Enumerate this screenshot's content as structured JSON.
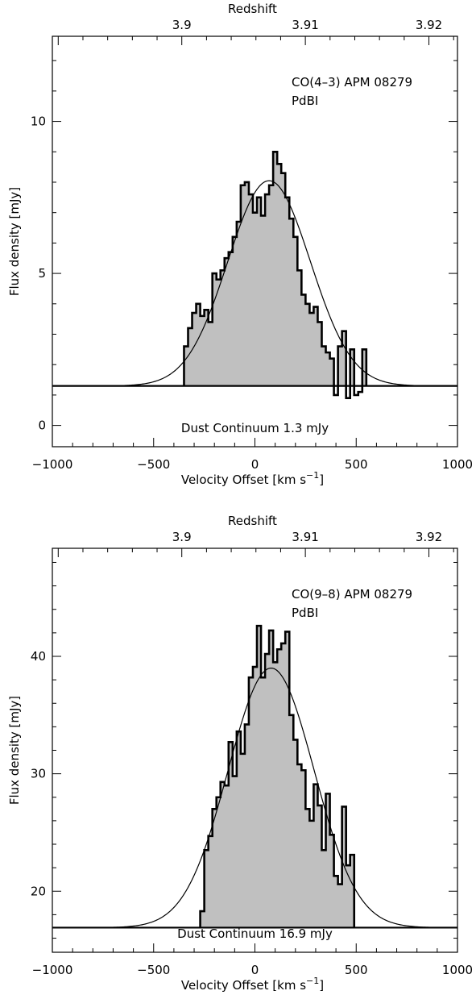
{
  "chart_data": [
    {
      "type": "histogram",
      "annotation_line1": "CO(4–3) APM 08279",
      "annotation_line2": "PdBI",
      "continuum_label": "Dust Continuum 1.3 mJy",
      "xlabel": "Velocity Offset [km s",
      "xlabel_sup": "−1",
      "xlabel_end": "]",
      "ylabel": "Flux density [mJy]",
      "top_axis_label": "Redshift",
      "xlim": [
        -1000,
        1000
      ],
      "ylim": [
        -0.7,
        12.8
      ],
      "x_ticks": [
        -1000,
        -500,
        0,
        500,
        1000
      ],
      "x_tick_labels": [
        "−1000",
        "−500",
        "0",
        "500",
        "1000"
      ],
      "y_ticks": [
        0,
        5,
        10
      ],
      "y_tick_labels": [
        "0",
        "5",
        "10"
      ],
      "top_ticks": [
        -361,
        249,
        859
      ],
      "top_tick_labels": [
        "3.9",
        "3.91",
        "3.92"
      ],
      "continuum": 1.3,
      "gaussian": {
        "amplitude": 6.75,
        "center": 70,
        "fwhm": 480
      },
      "bin_width": 20,
      "bins_x0": [
        -350,
        -330,
        -310,
        -290,
        -270,
        -250,
        -230,
        -210,
        -190,
        -170,
        -150,
        -130,
        -110,
        -90,
        -70,
        -50,
        -30,
        -10,
        10,
        30,
        50,
        70,
        90,
        110,
        130,
        150,
        170,
        190,
        210,
        230,
        250,
        270,
        290,
        310,
        330,
        350,
        370,
        390,
        410,
        430,
        450,
        470,
        490,
        510,
        530
      ],
      "flux": [
        2.6,
        3.2,
        3.7,
        4.0,
        3.6,
        3.8,
        3.4,
        5.0,
        4.8,
        5.1,
        5.5,
        5.7,
        6.2,
        6.7,
        7.9,
        8.0,
        7.6,
        7.0,
        7.5,
        6.9,
        7.6,
        7.9,
        9.0,
        8.6,
        8.3,
        7.5,
        6.8,
        6.2,
        5.1,
        4.3,
        4.0,
        3.7,
        3.9,
        3.4,
        2.6,
        2.4,
        2.2,
        1.0,
        2.6,
        3.1,
        0.9,
        2.5,
        1.0,
        1.1,
        2.5
      ]
    },
    {
      "type": "histogram",
      "annotation_line1": "CO(9–8) APM 08279",
      "annotation_line2": "PdBI",
      "continuum_label": "Dust Continuum 16.9 mJy",
      "xlabel": "Velocity Offset [km s",
      "xlabel_sup": "−1",
      "xlabel_end": "]",
      "ylabel": "Flux density [mJy]",
      "top_axis_label": "Redshift",
      "xlim": [
        -1000,
        1000
      ],
      "ylim": [
        14.8,
        49.2
      ],
      "x_ticks": [
        -1000,
        -500,
        0,
        500,
        1000
      ],
      "x_tick_labels": [
        "−1000",
        "−500",
        "0",
        "500",
        "1000"
      ],
      "y_ticks": [
        20,
        30,
        40
      ],
      "y_tick_labels": [
        "20",
        "30",
        "40"
      ],
      "top_ticks": [
        -361,
        249,
        859
      ],
      "top_tick_labels": [
        "3.9",
        "3.91",
        "3.92"
      ],
      "continuum": 16.9,
      "gaussian": {
        "amplitude": 22.1,
        "center": 80,
        "fwhm": 500
      },
      "bin_width": 20,
      "bins_x0": [
        -270,
        -250,
        -230,
        -210,
        -190,
        -170,
        -150,
        -130,
        -110,
        -90,
        -70,
        -50,
        -30,
        -10,
        10,
        30,
        50,
        70,
        90,
        110,
        130,
        150,
        170,
        190,
        210,
        230,
        250,
        270,
        290,
        310,
        330,
        350,
        370,
        390,
        410,
        430,
        450,
        470
      ],
      "flux": [
        18.3,
        23.5,
        24.7,
        27.0,
        28.0,
        29.3,
        29.0,
        32.7,
        29.8,
        33.6,
        31.7,
        34.2,
        38.2,
        39.1,
        42.6,
        38.2,
        40.2,
        42.2,
        39.5,
        40.6,
        41.1,
        42.1,
        35.0,
        32.9,
        30.8,
        30.3,
        27.0,
        26.0,
        29.1,
        27.3,
        23.5,
        28.3,
        24.8,
        21.3,
        20.6,
        27.2,
        22.2,
        23.1
      ]
    }
  ]
}
